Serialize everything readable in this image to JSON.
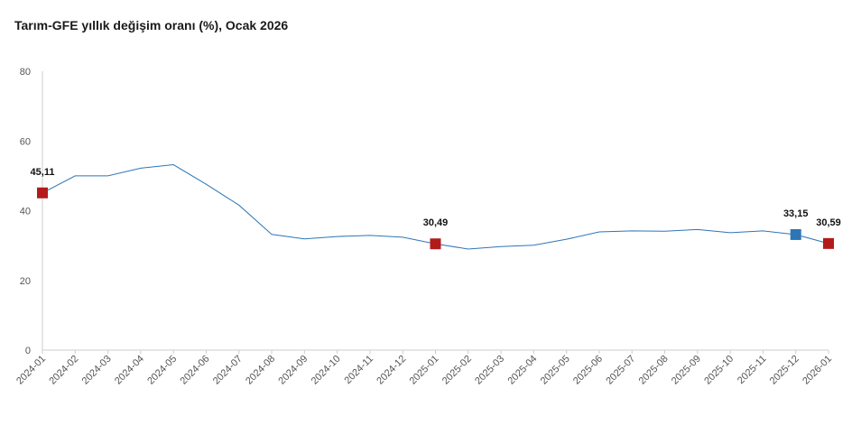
{
  "chart_data": {
    "type": "line",
    "title": "Tarım-GFE yıllık değişim oranı (%), Ocak 2026",
    "xlabel": "",
    "ylabel": "",
    "ylim": [
      0,
      80
    ],
    "yticks": [
      0,
      20,
      40,
      60,
      80
    ],
    "grid": false,
    "legend": "none",
    "categories": [
      "2024-01",
      "2024-02",
      "2024-03",
      "2024-04",
      "2024-05",
      "2024-06",
      "2024-07",
      "2024-08",
      "2024-09",
      "2024-10",
      "2024-11",
      "2024-12",
      "2025-01",
      "2025-02",
      "2025-03",
      "2025-04",
      "2025-05",
      "2025-06",
      "2025-07",
      "2025-08",
      "2025-09",
      "2025-10",
      "2025-11",
      "2025-12",
      "2026-01"
    ],
    "series": [
      {
        "values": [
          45.11,
          50.0,
          50.0,
          52.2,
          53.2,
          47.6,
          41.6,
          33.2,
          31.9,
          32.6,
          32.9,
          32.4,
          30.49,
          29.0,
          29.7,
          30.1,
          31.8,
          33.9,
          34.2,
          34.1,
          34.6,
          33.7,
          34.2,
          33.15,
          30.59
        ],
        "color": "#2e75b6"
      }
    ],
    "highlights": [
      {
        "index": 0,
        "label": "45,11",
        "color": "#b31b1b"
      },
      {
        "index": 12,
        "label": "30,49",
        "color": "#b31b1b"
      },
      {
        "index": 23,
        "label": "33,15",
        "color": "#2e75b6"
      },
      {
        "index": 24,
        "label": "30,59",
        "color": "#b31b1b"
      }
    ],
    "colors": {
      "line": "#2e75b6",
      "axis": "#cccccc",
      "tick_text": "#555555",
      "label_text": "#111111"
    }
  }
}
